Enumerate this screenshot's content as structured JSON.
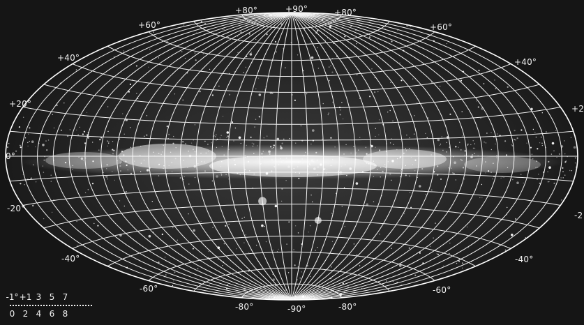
{
  "image": {
    "subject": "Aitoff-projection sky map with latitude/longitude grid and a bright band along the equator"
  },
  "grid_labels": {
    "top": [
      "+80°",
      "+90°",
      "+80°"
    ],
    "upper_left": "+60°",
    "upper_right": "+60°",
    "left_40": "+40°",
    "right_40": "+40°",
    "left_20": "+20°",
    "right_20": "+2",
    "left_0": "0°",
    "left_m20": "-20°",
    "right_m20": "-2",
    "left_m40": "-40°",
    "right_m40": "-40°",
    "left_m60": "-60°",
    "right_m60": "-60°",
    "bottom": [
      "-80°",
      "-90°",
      "-80°"
    ]
  },
  "scale": {
    "top_values": [
      "-1°",
      "+1",
      "3",
      "5",
      "7"
    ],
    "bottom_values": [
      "0",
      "2",
      "4",
      "6",
      "8"
    ]
  },
  "colors": {
    "background": "#1b1b1b",
    "grid": "#ffffff",
    "band": "#e9e9e9"
  }
}
